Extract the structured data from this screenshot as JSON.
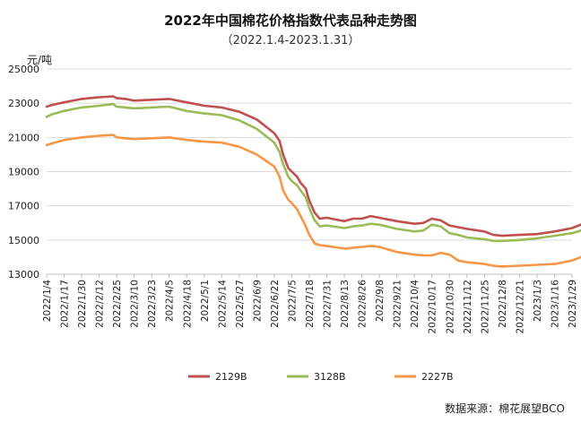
{
  "chart_data": {
    "type": "line",
    "title": "2022年中国棉花价格指数代表品种走势图",
    "subtitle": "（2022.1.4-2023.1.31）",
    "ylabel": "元/吨",
    "source": "数据来源：棉花展望BCO",
    "ylim": [
      13000,
      25000
    ],
    "yticks": [
      13000,
      15000,
      17000,
      19000,
      21000,
      23000,
      25000
    ],
    "xlabels": [
      "2022/1/4",
      "2022/1/17",
      "2022/1/30",
      "2022/2/12",
      "2022/2/25",
      "2022/3/10",
      "2022/3/23",
      "2022/4/5",
      "2022/4/18",
      "2022/5/1",
      "2022/5/14",
      "2022/5/27",
      "2022/6/9",
      "2022/6/22",
      "2022/7/5",
      "2022/7/18",
      "2022/7/31",
      "2022/8/13",
      "2022/8/26",
      "2022/9/8",
      "2022/9/21",
      "2022/10/4",
      "2022/10/17",
      "2022/10/30",
      "2022/11/12",
      "2022/11/25",
      "2022/12/8",
      "2022/12/21",
      "2023/1/3",
      "2023/1/16",
      "2023/1/29"
    ],
    "grid": "horizontal",
    "legend_position": "bottom",
    "series": [
      {
        "name": "2129B",
        "color": "#c0504d",
        "x": [
          0,
          0.3,
          1,
          2,
          2.5,
          3,
          3.8,
          4,
          4.5,
          5,
          6,
          7,
          8,
          9,
          10,
          11,
          12,
          13,
          13.3,
          13.5,
          13.8,
          14,
          14.3,
          14.5,
          14.8,
          15,
          15.3,
          15.6,
          16,
          17,
          17.5,
          18,
          18.5,
          19,
          20,
          21,
          21.5,
          22,
          22.5,
          23,
          23.5,
          24,
          25,
          25.5,
          26,
          27,
          28,
          29,
          30,
          30.5,
          31
        ],
        "values": [
          22800,
          22900,
          23050,
          23250,
          23300,
          23350,
          23400,
          23300,
          23250,
          23150,
          23200,
          23250,
          23050,
          22850,
          22750,
          22500,
          22050,
          21250,
          20800,
          20000,
          19200,
          19000,
          18700,
          18350,
          18000,
          17300,
          16600,
          16250,
          16300,
          16100,
          16250,
          16250,
          16400,
          16300,
          16100,
          15950,
          16000,
          16250,
          16150,
          15850,
          15750,
          15650,
          15500,
          15300,
          15250,
          15300,
          15350,
          15500,
          15700,
          15900,
          16050
        ]
      },
      {
        "name": "3128B",
        "color": "#9bbb59",
        "x": [
          0,
          0.3,
          1,
          2,
          2.5,
          3,
          3.8,
          4,
          4.5,
          5,
          6,
          7,
          8,
          9,
          10,
          11,
          12,
          13,
          13.3,
          13.5,
          13.8,
          14,
          14.3,
          14.5,
          14.8,
          15,
          15.3,
          15.6,
          16,
          17,
          17.5,
          18,
          18.5,
          19,
          20,
          21,
          21.5,
          22,
          22.5,
          23,
          23.5,
          24,
          25,
          25.5,
          26,
          27,
          28,
          29,
          30,
          30.5,
          31
        ],
        "values": [
          22200,
          22350,
          22550,
          22750,
          22800,
          22850,
          22950,
          22800,
          22750,
          22700,
          22750,
          22800,
          22550,
          22400,
          22300,
          22000,
          21500,
          20700,
          20150,
          19450,
          18700,
          18450,
          18200,
          17900,
          17500,
          16850,
          16150,
          15800,
          15850,
          15700,
          15800,
          15850,
          15950,
          15900,
          15650,
          15500,
          15550,
          15900,
          15800,
          15400,
          15300,
          15150,
          15050,
          14950,
          14950,
          15000,
          15100,
          15250,
          15400,
          15550,
          15850
        ]
      },
      {
        "name": "2227B",
        "color": "#f79646",
        "x": [
          0,
          0.3,
          1,
          2,
          2.5,
          3,
          3.8,
          4,
          4.5,
          5,
          6,
          7,
          8,
          9,
          10,
          11,
          12,
          13,
          13.3,
          13.5,
          13.8,
          14,
          14.3,
          14.5,
          14.8,
          15,
          15.3,
          15.6,
          16,
          17,
          17.5,
          18,
          18.5,
          19,
          20,
          21,
          21.5,
          22,
          22.5,
          23,
          23.5,
          24,
          25,
          25.5,
          26,
          27,
          28,
          29,
          30,
          30.5,
          31
        ],
        "values": [
          20550,
          20650,
          20850,
          21000,
          21050,
          21100,
          21150,
          21000,
          20950,
          20900,
          20950,
          21000,
          20850,
          20750,
          20700,
          20450,
          20000,
          19300,
          18700,
          17900,
          17350,
          17150,
          16800,
          16400,
          15800,
          15300,
          14800,
          14700,
          14650,
          14500,
          14550,
          14600,
          14650,
          14600,
          14300,
          14150,
          14100,
          14100,
          14250,
          14150,
          13800,
          13700,
          13600,
          13500,
          13450,
          13500,
          13550,
          13600,
          13800,
          14000,
          14200
        ]
      }
    ]
  }
}
